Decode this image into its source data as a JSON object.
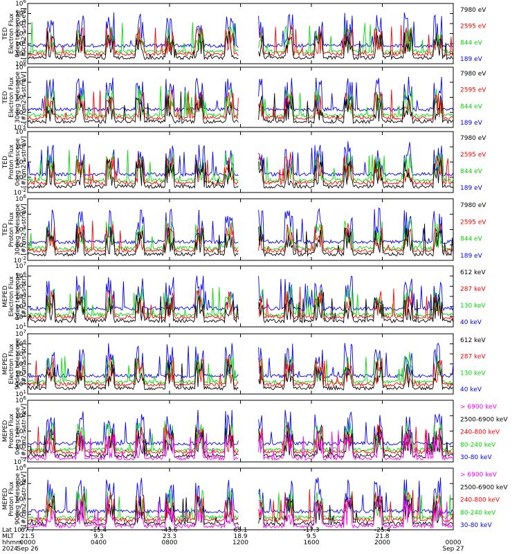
{
  "chart_data": {
    "type": "line",
    "x_ticks": [
      {
        "lat": "67.7",
        "mlt": "21.5",
        "hhmm": "0000",
        "date": "Sep 26"
      },
      {
        "lat": "-15.4",
        "mlt": "9.3",
        "hhmm": "0400",
        "date": ""
      },
      {
        "lat": "-43.6",
        "mlt": "23.3",
        "hhmm": "0800",
        "date": ""
      },
      {
        "lat": "65.1",
        "mlt": "18.9",
        "hhmm": "1200",
        "date": ""
      },
      {
        "lat": "-17.3",
        "mlt": "9.5",
        "hhmm": "1600",
        "date": ""
      },
      {
        "lat": "-25.4",
        "mlt": "21.8",
        "hhmm": "2000",
        "date": ""
      },
      {
        "lat": "",
        "mlt": "",
        "hhmm": "0000",
        "date": "Sep 27"
      }
    ],
    "x_row_labels": [
      "Lat",
      "MLT",
      "hhmm",
      "2024"
    ],
    "gap_hours": [
      11.9,
      13.0
    ],
    "panels": [
      {
        "ylabel": [
          "TED",
          "Electron Flux",
          "0deg telescope",
          "[#/cm2-s-str-eV]"
        ],
        "ylog": [
          0,
          6
        ],
        "tick_exps": [
          0,
          1,
          2,
          3,
          4,
          5,
          6
        ],
        "series": [
          {
            "name": "7980 eV",
            "color": "#000000"
          },
          {
            "name": "2595 eV",
            "color": "#ff0000"
          },
          {
            "name": "844 eV",
            "color": "#00dd00"
          },
          {
            "name": "189 eV",
            "color": "#0000ff"
          }
        ]
      },
      {
        "ylabel": [
          "TED",
          "Electron Flux",
          "30deg telescope",
          "[#/cm2-s-str-eV]"
        ],
        "ylog": [
          -2,
          6
        ],
        "tick_exps": [
          -2,
          0,
          2,
          4,
          6
        ],
        "series": [
          {
            "name": "7980 eV",
            "color": "#000000"
          },
          {
            "name": "2595 eV",
            "color": "#ff0000"
          },
          {
            "name": "844 eV",
            "color": "#00dd00"
          },
          {
            "name": "189 eV",
            "color": "#0000ff"
          }
        ]
      },
      {
        "ylabel": [
          "TED",
          "Proton Flux",
          "0deg telescope",
          "[#/cm2-s-str-eV]"
        ],
        "ylog": [
          -2,
          6
        ],
        "tick_exps": [
          -2,
          0,
          2,
          4,
          6
        ],
        "series": [
          {
            "name": "7980 eV",
            "color": "#000000"
          },
          {
            "name": "2595 eV",
            "color": "#ff0000"
          },
          {
            "name": "844 eV",
            "color": "#00dd00"
          },
          {
            "name": "189 eV",
            "color": "#0000ff"
          }
        ]
      },
      {
        "ylabel": [
          "TED",
          "Proton Flux",
          "30deg telescope",
          "[#/cm2-s-str-eV]"
        ],
        "ylog": [
          -2,
          6
        ],
        "tick_exps": [
          -2,
          0,
          2,
          4,
          6
        ],
        "series": [
          {
            "name": "7980 eV",
            "color": "#000000"
          },
          {
            "name": "2595 eV",
            "color": "#ff0000"
          },
          {
            "name": "844 eV",
            "color": "#00dd00"
          },
          {
            "name": "189 eV",
            "color": "#0000ff"
          }
        ]
      },
      {
        "ylabel": [
          "MEPED",
          "Electron Flux",
          "0deg telescope",
          "[#/cm2-s-str]"
        ],
        "ylog": [
          1,
          7
        ],
        "tick_exps": [
          1,
          2,
          3,
          4,
          5,
          6,
          7
        ],
        "series": [
          {
            "name": "612 keV",
            "color": "#000000"
          },
          {
            "name": "287 keV",
            "color": "#ff0000"
          },
          {
            "name": "130 keV",
            "color": "#00dd00"
          },
          {
            "name": "40 keV",
            "color": "#0000ff"
          }
        ]
      },
      {
        "ylabel": [
          "MEPED",
          "Electron Flux",
          "90deg telescope",
          "[#/cm2-s-str]"
        ],
        "ylog": [
          1,
          7
        ],
        "tick_exps": [
          1,
          2,
          3,
          4,
          5,
          6,
          7
        ],
        "series": [
          {
            "name": "612 keV",
            "color": "#000000"
          },
          {
            "name": "287 keV",
            "color": "#ff0000"
          },
          {
            "name": "130 keV",
            "color": "#00dd00"
          },
          {
            "name": "40 keV",
            "color": "#0000ff"
          }
        ]
      },
      {
        "ylabel": [
          "MEPED",
          "Proton Flux",
          "0deg telescope",
          "[#/cm2-s-str-keV]"
        ],
        "ylog": [
          -2,
          6
        ],
        "tick_exps": [
          -2,
          0,
          2,
          4,
          6
        ],
        "series": [
          {
            "name": "> 6900 keV",
            "color": "#ff00ff"
          },
          {
            "name": "2500-6900 keV",
            "color": "#000000"
          },
          {
            "name": "240-800 keV",
            "color": "#ff0000"
          },
          {
            "name": "80-240 keV",
            "color": "#00dd00"
          },
          {
            "name": "30-80 keV",
            "color": "#0000ff"
          }
        ]
      },
      {
        "ylabel": [
          "MEPED",
          "Proton Flux",
          "90deg telescope",
          "[#/cm2-s-str-keV]"
        ],
        "ylog": [
          -2,
          6
        ],
        "tick_exps": [
          -2,
          0,
          2,
          4,
          6
        ],
        "series": [
          {
            "name": "> 6900 keV",
            "color": "#ff00ff"
          },
          {
            "name": "2500-6900 keV",
            "color": "#000000"
          },
          {
            "name": "240-800 keV",
            "color": "#ff0000"
          },
          {
            "name": "80-240 keV",
            "color": "#00dd00"
          },
          {
            "name": "30-80 keV",
            "color": "#0000ff"
          }
        ]
      }
    ]
  }
}
